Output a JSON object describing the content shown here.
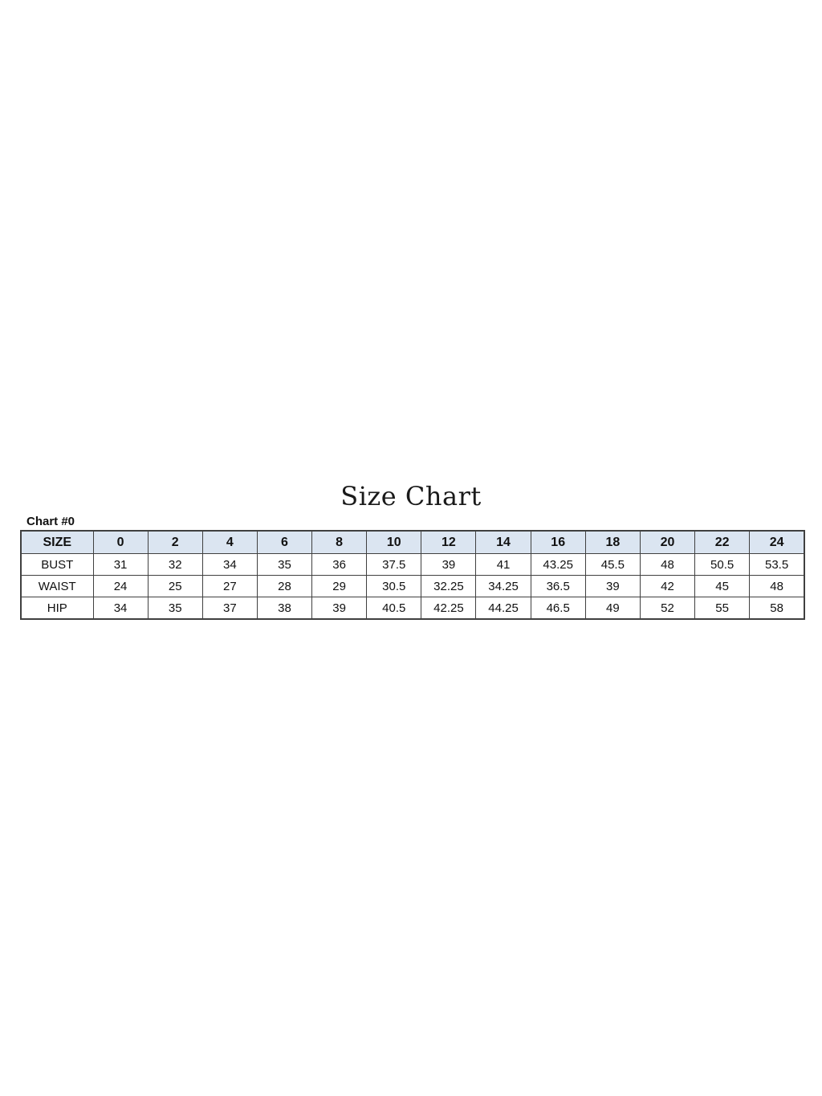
{
  "page": {
    "title": "Size Chart",
    "chart_label": "Chart #0"
  },
  "chart_data": {
    "type": "table",
    "title": "Size Chart",
    "subtitle": "Chart #0",
    "columns": [
      "SIZE",
      "0",
      "2",
      "4",
      "6",
      "8",
      "10",
      "12",
      "14",
      "16",
      "18",
      "20",
      "22",
      "24"
    ],
    "rows": [
      {
        "label": "BUST",
        "values": [
          "31",
          "32",
          "34",
          "35",
          "36",
          "37.5",
          "39",
          "41",
          "43.25",
          "45.5",
          "48",
          "50.5",
          "53.5"
        ]
      },
      {
        "label": "WAIST",
        "values": [
          "24",
          "25",
          "27",
          "28",
          "29",
          "30.5",
          "32.25",
          "34.25",
          "36.5",
          "39",
          "42",
          "45",
          "48"
        ]
      },
      {
        "label": "HIP",
        "values": [
          "34",
          "35",
          "37",
          "38",
          "39",
          "40.5",
          "42.25",
          "44.25",
          "46.5",
          "49",
          "52",
          "55",
          "58"
        ]
      }
    ],
    "layout": {
      "header_bg": "#dbe5f1",
      "body_bg": "#ffffff",
      "border_color": "#404040",
      "grid": true,
      "legend": "none"
    }
  }
}
